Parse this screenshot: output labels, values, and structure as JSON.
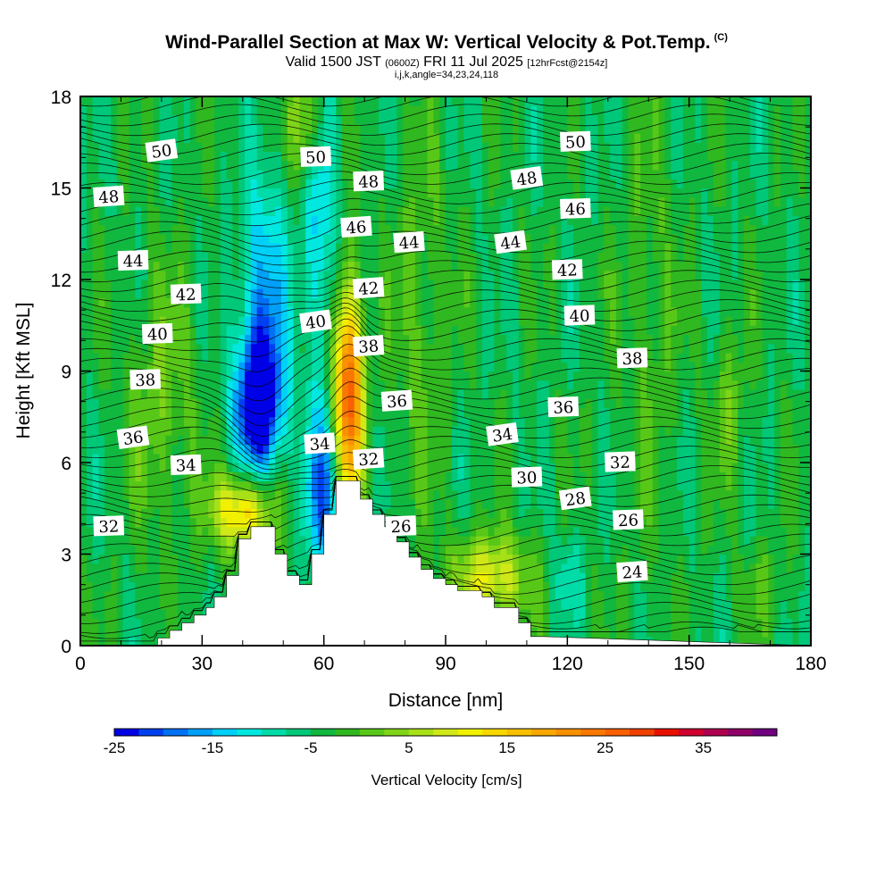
{
  "title": {
    "main": "Wind-Parallel Section at Max W: Vertical Velocity & Pot.Temp.",
    "main_units": "(C)",
    "valid_prefix": "Valid 1500 JST",
    "valid_utc": "(0600Z)",
    "valid_date": "FRI 11 Jul 2025",
    "forecast": "[12hrFcst@2154z]",
    "params": "i,j,k,angle=34,23,24,118"
  },
  "chart_data": {
    "type": "heatmap",
    "xlabel": "Distance [nm]",
    "ylabel": "Height [Kft MSL]",
    "xlim": [
      0,
      180
    ],
    "ylim": [
      0,
      18
    ],
    "x_ticks": [
      "0",
      "30",
      "60",
      "90",
      "120",
      "150",
      "180"
    ],
    "y_ticks": [
      "0",
      "3",
      "6",
      "9",
      "12",
      "15",
      "18"
    ],
    "colorbar": {
      "title": "Vertical Velocity [cm/s]",
      "min": -25,
      "max": 40,
      "step": 2.5,
      "tick_labels": [
        "-25",
        "-15",
        "-5",
        "5",
        "15",
        "25",
        "35"
      ],
      "colors": [
        "#0000e6",
        "#0040f0",
        "#0070f5",
        "#00a0f8",
        "#00d0f8",
        "#00e8e0",
        "#00dca8",
        "#00c878",
        "#10b840",
        "#30b820",
        "#58c818",
        "#80d418",
        "#a8e018",
        "#d0e818",
        "#f0f000",
        "#f8d800",
        "#f8c000",
        "#f8a800",
        "#f89000",
        "#f87800",
        "#f86000",
        "#f04000",
        "#e81000",
        "#d00030",
        "#b00050",
        "#900068",
        "#700080"
      ]
    },
    "terrain": {
      "x": [
        0,
        19,
        19,
        22,
        22,
        25,
        25,
        28,
        28,
        31,
        31,
        33,
        33,
        36,
        36,
        39,
        39,
        42,
        42,
        48,
        48,
        51,
        51,
        54,
        54,
        57,
        57,
        60,
        60,
        63,
        63,
        66,
        66,
        69,
        69,
        72,
        72,
        75,
        75,
        78,
        78,
        81,
        81,
        84,
        84,
        87,
        87,
        90,
        90,
        93,
        93,
        99,
        99,
        102,
        102,
        108,
        108,
        111,
        111,
        114,
        114,
        180
      ],
      "y": [
        0,
        0,
        0.25,
        0.25,
        0.5,
        0.5,
        0.75,
        0.75,
        1.0,
        1.0,
        1.25,
        1.25,
        1.6,
        1.6,
        2.3,
        2.3,
        3.5,
        3.5,
        3.9,
        3.9,
        3.0,
        3.0,
        2.3,
        2.3,
        2.0,
        2.0,
        3.0,
        3.0,
        4.3,
        4.3,
        5.4,
        5.4,
        5.4,
        5.4,
        4.8,
        4.8,
        4.3,
        4.3,
        3.9,
        3.9,
        3.4,
        3.4,
        2.9,
        2.9,
        2.5,
        2.5,
        2.2,
        2.2,
        2.0,
        2.0,
        1.8,
        1.8,
        1.6,
        1.6,
        1.25,
        1.25,
        0.75,
        0.75,
        0.3,
        0.3,
        0.3,
        0
      ]
    },
    "vertical_velocity_features": [
      {
        "x": 44,
        "y": 7.9,
        "peak": -24,
        "sx": 4,
        "sy": 1.6
      },
      {
        "x": 45,
        "y": 11.5,
        "peak": -12,
        "sx": 4,
        "sy": 2.8
      },
      {
        "x": 60,
        "y": 5.0,
        "peak": -14,
        "sx": 3.5,
        "sy": 2.0
      },
      {
        "x": 59,
        "y": 14.0,
        "peak": -10,
        "sx": 3,
        "sy": 3.5
      },
      {
        "x": 40,
        "y": 4.4,
        "peak": 20,
        "sx": 5,
        "sy": 0.9
      },
      {
        "x": 66,
        "y": 8.2,
        "peak": 32,
        "sx": 2.5,
        "sy": 2.6
      },
      {
        "x": 56,
        "y": 17.2,
        "peak": 12,
        "sx": 3,
        "sy": 1.4
      },
      {
        "x": 101,
        "y": 2.2,
        "peak": 14,
        "sx": 7,
        "sy": 1.0
      },
      {
        "x": 20,
        "y": 8.0,
        "peak": 6,
        "sx": 6,
        "sy": 3.0
      },
      {
        "x": 84,
        "y": 11.0,
        "peak": 5,
        "sx": 5,
        "sy": 4.0
      },
      {
        "x": 120,
        "y": 2.3,
        "peak": -6,
        "sx": 2.5,
        "sy": 1.0
      },
      {
        "x": 140,
        "y": 11.0,
        "peak": 4,
        "sx": 5,
        "sy": 5.0
      },
      {
        "x": 160,
        "y": 8.0,
        "peak": 5,
        "sx": 3,
        "sy": 2.0
      },
      {
        "x": 168,
        "y": 2.0,
        "peak": 4,
        "sx": 4,
        "sy": 1.0
      }
    ],
    "theta_contour_labels": [
      {
        "text": "50",
        "x": 20,
        "y": 16.2
      },
      {
        "text": "50",
        "x": 58,
        "y": 16.0
      },
      {
        "text": "50",
        "x": 122,
        "y": 16.5
      },
      {
        "text": "48",
        "x": 7,
        "y": 14.7
      },
      {
        "text": "48",
        "x": 71,
        "y": 15.2
      },
      {
        "text": "48",
        "x": 110,
        "y": 15.3
      },
      {
        "text": "46",
        "x": 68,
        "y": 13.7
      },
      {
        "text": "46",
        "x": 122,
        "y": 14.3
      },
      {
        "text": "44",
        "x": 13,
        "y": 12.6
      },
      {
        "text": "44",
        "x": 81,
        "y": 13.2
      },
      {
        "text": "44",
        "x": 106,
        "y": 13.2
      },
      {
        "text": "42",
        "x": 26,
        "y": 11.5
      },
      {
        "text": "42",
        "x": 71,
        "y": 11.7
      },
      {
        "text": "42",
        "x": 120,
        "y": 12.3
      },
      {
        "text": "40",
        "x": 19,
        "y": 10.2
      },
      {
        "text": "40",
        "x": 58,
        "y": 10.6
      },
      {
        "text": "40",
        "x": 123,
        "y": 10.8
      },
      {
        "text": "38",
        "x": 16,
        "y": 8.7
      },
      {
        "text": "38",
        "x": 71,
        "y": 9.8
      },
      {
        "text": "38",
        "x": 136,
        "y": 9.4
      },
      {
        "text": "36",
        "x": 13,
        "y": 6.8
      },
      {
        "text": "36",
        "x": 78,
        "y": 8.0
      },
      {
        "text": "36",
        "x": 119,
        "y": 7.8
      },
      {
        "text": "34",
        "x": 26,
        "y": 5.9
      },
      {
        "text": "34",
        "x": 59,
        "y": 6.6
      },
      {
        "text": "34",
        "x": 104,
        "y": 6.9
      },
      {
        "text": "32",
        "x": 7,
        "y": 3.9
      },
      {
        "text": "32",
        "x": 71,
        "y": 6.1
      },
      {
        "text": "32",
        "x": 133,
        "y": 6.0
      },
      {
        "text": "30",
        "x": 110,
        "y": 5.5
      },
      {
        "text": "28",
        "x": 122,
        "y": 4.8
      },
      {
        "text": "26",
        "x": 79,
        "y": 3.9
      },
      {
        "text": "26",
        "x": 135,
        "y": 4.1
      },
      {
        "text": "24",
        "x": 136,
        "y": 2.4
      }
    ]
  }
}
